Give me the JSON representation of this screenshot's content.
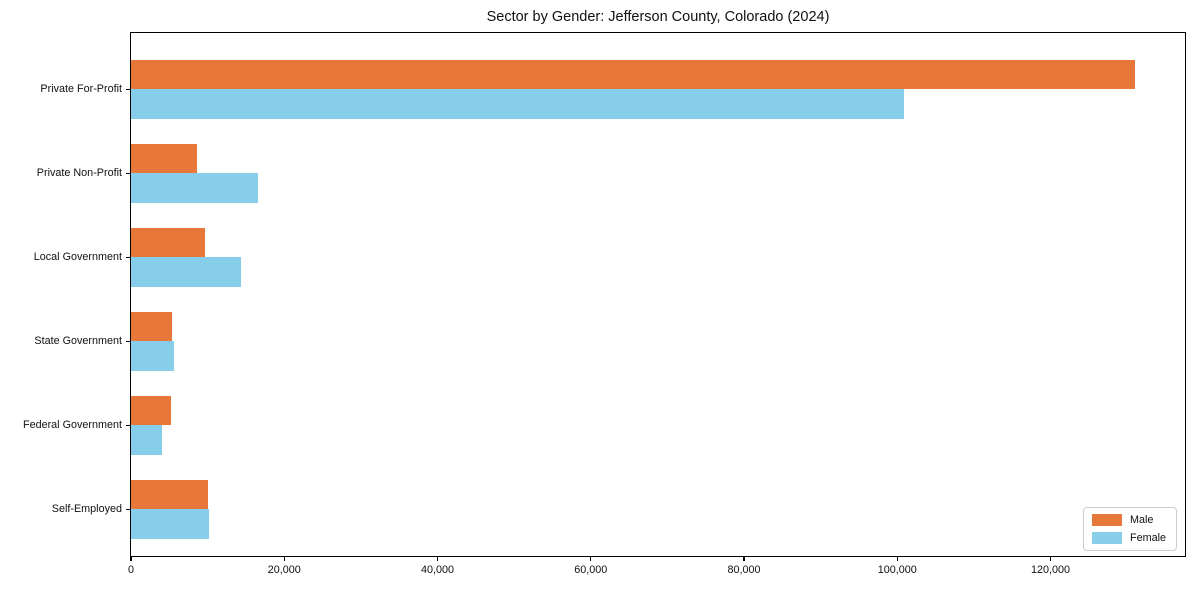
{
  "chart_data": {
    "type": "bar",
    "orientation": "horizontal",
    "title": "Sector by Gender: Jefferson County, Colorado (2024)",
    "categories": [
      "Private For-Profit",
      "Private Non-Profit",
      "Local Government",
      "State Government",
      "Federal Government",
      "Self-Employed"
    ],
    "series": [
      {
        "name": "Male",
        "color": "#E8783A",
        "values": [
          131000,
          8600,
          9600,
          5400,
          5200,
          10000
        ]
      },
      {
        "name": "Female",
        "color": "#87CEEB",
        "values": [
          100900,
          16600,
          14300,
          5600,
          4100,
          10200
        ]
      }
    ],
    "xlabel": "",
    "ylabel": "",
    "xlim": [
      0,
      137550
    ],
    "x_ticks": [
      0,
      20000,
      40000,
      60000,
      80000,
      100000,
      120000
    ],
    "x_tick_labels": [
      "0",
      "20,000",
      "40,000",
      "60,000",
      "80,000",
      "100,000",
      "120,000"
    ],
    "grid": false,
    "legend": {
      "position": "lower right",
      "entries": [
        "Male",
        "Female"
      ]
    }
  }
}
